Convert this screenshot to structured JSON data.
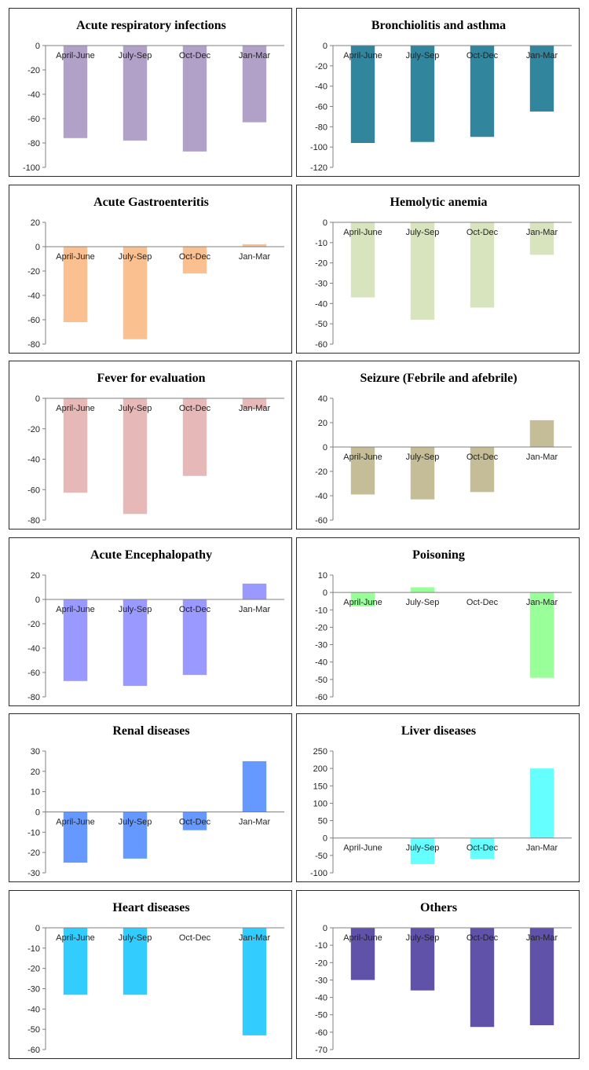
{
  "categories": [
    "April-June",
    "July-Sep",
    "Oct-Dec",
    "Jan-Mar"
  ],
  "chart_data": [
    {
      "type": "bar",
      "title": "Acute respiratory infections",
      "categories": [
        "April-June",
        "July-Sep",
        "Oct-Dec",
        "Jan-Mar"
      ],
      "values": [
        -76,
        -78,
        -87,
        -63
      ],
      "ylim": [
        -100,
        0
      ],
      "yticks": [
        0,
        -20,
        -40,
        -60,
        -80,
        -100
      ],
      "color": "#B1A0C7",
      "xlabel": "",
      "ylabel": ""
    },
    {
      "type": "bar",
      "title": "Bronchiolitis and asthma",
      "categories": [
        "April-June",
        "July-Sep",
        "Oct-Dec",
        "Jan-Mar"
      ],
      "values": [
        -96,
        -95,
        -90,
        -65
      ],
      "ylim": [
        -120,
        0
      ],
      "yticks": [
        0,
        -20,
        -40,
        -60,
        -80,
        -100,
        -120
      ],
      "color": "#31859C",
      "xlabel": "",
      "ylabel": ""
    },
    {
      "type": "bar",
      "title": "Acute Gastroenteritis",
      "categories": [
        "April-June",
        "July-Sep",
        "Oct-Dec",
        "Jan-Mar"
      ],
      "values": [
        -62,
        -76,
        -22,
        2
      ],
      "ylim": [
        -80,
        20
      ],
      "yticks": [
        20,
        0,
        -20,
        -40,
        -60,
        -80
      ],
      "color": "#FAC090",
      "xlabel": "",
      "ylabel": ""
    },
    {
      "type": "bar",
      "title": "Hemolytic anemia",
      "categories": [
        "April-June",
        "July-Sep",
        "Oct-Dec",
        "Jan-Mar"
      ],
      "values": [
        -37,
        -48,
        -42,
        -16
      ],
      "ylim": [
        -60,
        0
      ],
      "yticks": [
        0,
        -10,
        -20,
        -30,
        -40,
        -50,
        -60
      ],
      "color": "#D7E4BD",
      "xlabel": "",
      "ylabel": ""
    },
    {
      "type": "bar",
      "title": "Fever for evaluation",
      "categories": [
        "April-June",
        "July-Sep",
        "Oct-Dec",
        "Jan-Mar"
      ],
      "values": [
        -62,
        -76,
        -51,
        -7
      ],
      "ylim": [
        -80,
        0
      ],
      "yticks": [
        0,
        -20,
        -40,
        -60,
        -80
      ],
      "color": "#E6B9B8",
      "xlabel": "",
      "ylabel": ""
    },
    {
      "type": "bar",
      "title": "Seizure (Febrile and afebrile)",
      "categories": [
        "April-June",
        "July-Sep",
        "Oct-Dec",
        "Jan-Mar"
      ],
      "values": [
        -39,
        -43,
        -37,
        22
      ],
      "ylim": [
        -60,
        40
      ],
      "yticks": [
        40,
        20,
        0,
        -20,
        -40,
        -60
      ],
      "color": "#C4BD97",
      "xlabel": "",
      "ylabel": ""
    },
    {
      "type": "bar",
      "title": "Acute Encephalopathy",
      "categories": [
        "April-June",
        "July-Sep",
        "Oct-Dec",
        "Jan-Mar"
      ],
      "values": [
        -67,
        -71,
        -62,
        13
      ],
      "ylim": [
        -80,
        20
      ],
      "yticks": [
        20,
        0,
        -20,
        -40,
        -60,
        -80
      ],
      "color": "#9999FF",
      "xlabel": "",
      "ylabel": ""
    },
    {
      "type": "bar",
      "title": "Poisoning",
      "categories": [
        "April-June",
        "July-Sep",
        "Oct-Dec",
        "Jan-Mar"
      ],
      "values": [
        -8,
        3,
        0,
        -49
      ],
      "ylim": [
        -60,
        10
      ],
      "yticks": [
        10,
        0,
        -10,
        -20,
        -30,
        -40,
        -50,
        -60
      ],
      "color": "#99FF99",
      "xlabel": "",
      "ylabel": ""
    },
    {
      "type": "bar",
      "title": "Renal diseases",
      "categories": [
        "April-June",
        "July-Sep",
        "Oct-Dec",
        "Jan-Mar"
      ],
      "values": [
        -25,
        -23,
        -9,
        25
      ],
      "ylim": [
        -30,
        30
      ],
      "yticks": [
        30,
        20,
        10,
        0,
        -10,
        -20,
        -30
      ],
      "color": "#6699FF",
      "xlabel": "",
      "ylabel": ""
    },
    {
      "type": "bar",
      "title": "Liver diseases",
      "categories": [
        "April-June",
        "July-Sep",
        "Oct-Dec",
        "Jan-Mar"
      ],
      "values": [
        0,
        -75,
        -60,
        200
      ],
      "ylim": [
        -100,
        250
      ],
      "yticks": [
        250,
        200,
        150,
        100,
        50,
        0,
        -50,
        -100
      ],
      "color": "#66FFFF",
      "xlabel": "",
      "ylabel": ""
    },
    {
      "type": "bar",
      "title": "Heart diseases",
      "categories": [
        "April-June",
        "July-Sep",
        "Oct-Dec",
        "Jan-Mar"
      ],
      "values": [
        -33,
        -33,
        0,
        -53
      ],
      "ylim": [
        -60,
        0
      ],
      "yticks": [
        0,
        -10,
        -20,
        -30,
        -40,
        -50,
        -60
      ],
      "color": "#33CCFF",
      "xlabel": "",
      "ylabel": ""
    },
    {
      "type": "bar",
      "title": "Others",
      "categories": [
        "April-June",
        "July-Sep",
        "Oct-Dec",
        "Jan-Mar"
      ],
      "values": [
        -30,
        -36,
        -57,
        -56
      ],
      "ylim": [
        -70,
        0
      ],
      "yticks": [
        0,
        -10,
        -20,
        -30,
        -40,
        -50,
        -60,
        -70
      ],
      "color": "#6052A8",
      "xlabel": "",
      "ylabel": ""
    }
  ]
}
